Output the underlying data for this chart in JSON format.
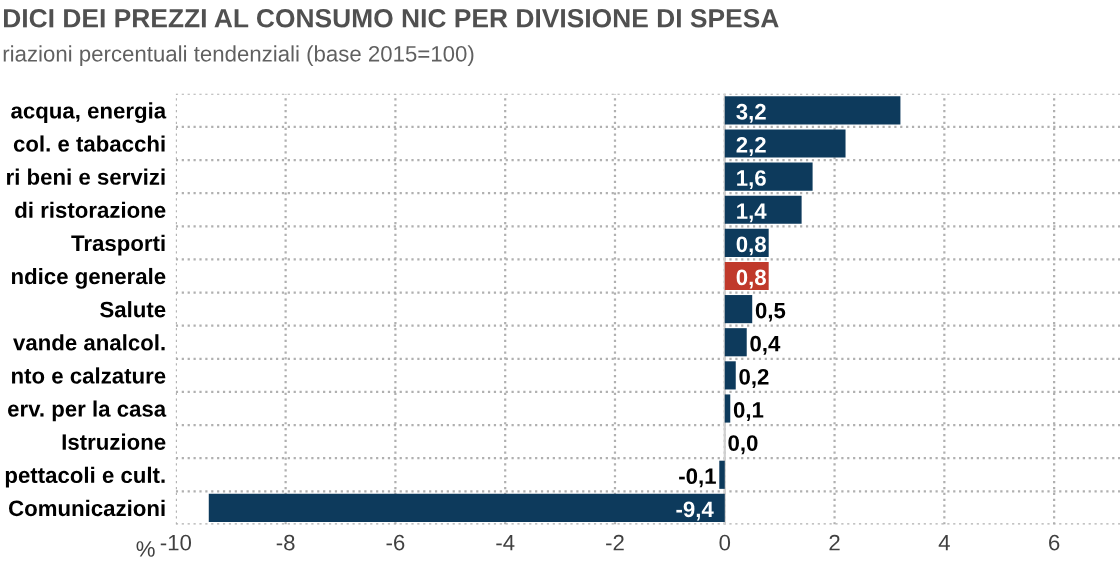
{
  "chart_data": {
    "type": "bar",
    "orientation": "horizontal",
    "title": "DICI DEI PREZZI AL CONSUMO NIC PER DIVISIONE DI SPESA",
    "subtitle": "riazioni percentuali tendenziali (base 2015=100)",
    "categories": [
      "acqua, energia",
      "col. e tabacchi",
      "ri beni e servizi",
      "di ristorazione",
      "Trasporti",
      "ndice generale",
      "Salute",
      "vande analcol.",
      "nto e calzature",
      "erv. per la casa",
      "Istruzione",
      "pettacoli e cult.",
      "Comunicazioni"
    ],
    "values": [
      3.2,
      2.2,
      1.6,
      1.4,
      0.8,
      0.8,
      0.5,
      0.4,
      0.2,
      0.1,
      0.0,
      -0.1,
      -9.4
    ],
    "colors": [
      "#0d3a5c",
      "#0d3a5c",
      "#0d3a5c",
      "#0d3a5c",
      "#0d3a5c",
      "#c0392b",
      "#0d3a5c",
      "#0d3a5c",
      "#0d3a5c",
      "#0d3a5c",
      "#0d3a5c",
      "#0d3a5c",
      "#0d3a5c"
    ],
    "value_labels": [
      "3,2",
      "2,2",
      "1,6",
      "1,4",
      "0,8",
      "0,8",
      "0,5",
      "0,4",
      "0,2",
      "0,1",
      "0,0",
      "-0,1",
      "-9,4"
    ],
    "xlim": [
      -10,
      7.2
    ],
    "xticks": [
      -10,
      -8,
      -6,
      -4,
      -2,
      0,
      2,
      4,
      6
    ],
    "grid": true,
    "annotations": [
      "%"
    ]
  }
}
